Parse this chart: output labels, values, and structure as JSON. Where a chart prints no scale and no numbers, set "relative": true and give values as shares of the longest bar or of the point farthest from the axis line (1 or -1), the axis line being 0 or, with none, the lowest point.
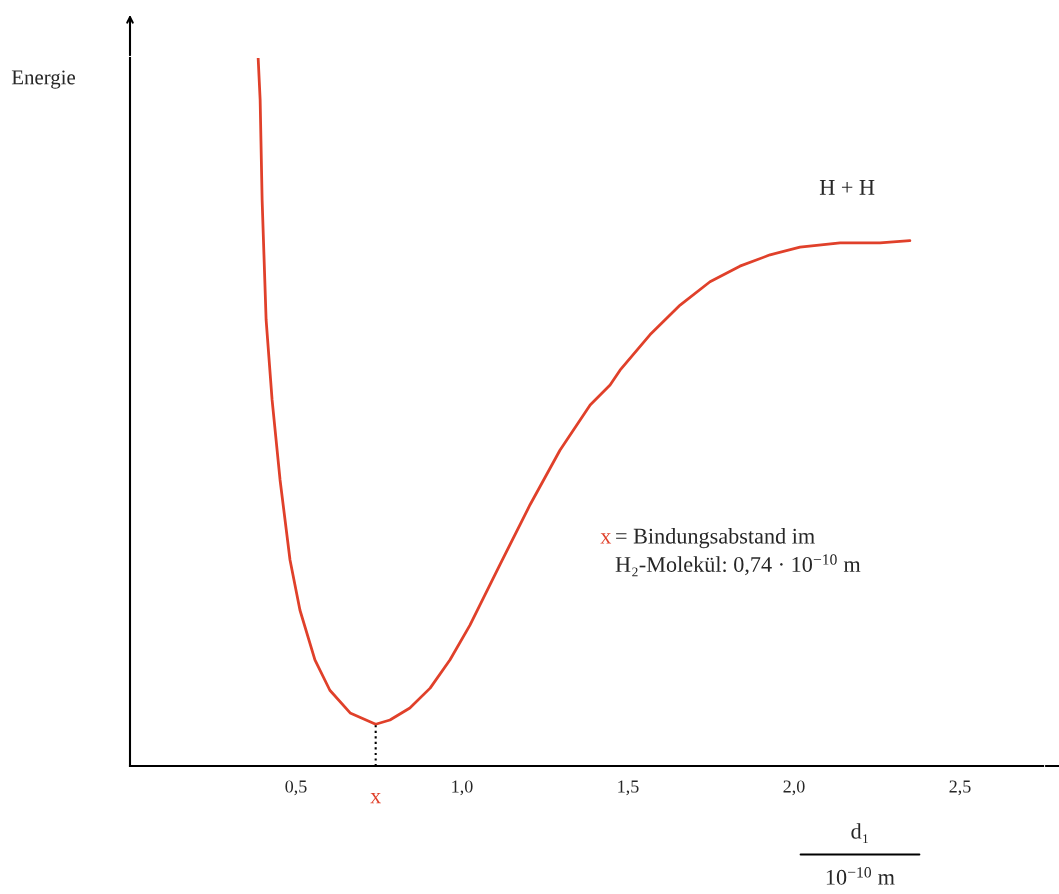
{
  "chart_data": {
    "type": "line",
    "relative": true,
    "ylabel": "Energie",
    "xlabel": "d₁\n10$^{−10}$ m",
    "x": [
      0.386,
      0.392,
      0.398,
      0.41,
      0.428,
      0.452,
      0.482,
      0.512,
      0.557,
      0.602,
      0.663,
      0.74,
      0.783,
      0.843,
      0.904,
      0.964,
      1.024,
      1.114,
      1.205,
      1.295,
      1.386,
      1.446,
      1.476,
      1.566,
      1.657,
      1.747,
      1.837,
      1.928,
      2.018,
      2.139,
      2.259,
      2.349
    ],
    "series": [
      {
        "color": "#e0402a",
        "values": [
          1.0,
          0.941,
          0.799,
          0.63,
          0.517,
          0.404,
          0.291,
          0.22,
          0.15,
          0.107,
          0.075,
          0.059,
          0.065,
          0.082,
          0.11,
          0.15,
          0.199,
          0.284,
          0.369,
          0.446,
          0.51,
          0.538,
          0.559,
          0.609,
          0.651,
          0.684,
          0.706,
          0.722,
          0.733,
          0.739,
          0.739,
          0.742
        ]
      }
    ],
    "xlim": [
      0,
      2.75
    ],
    "xticks": [
      {
        "value": 0.5,
        "label": "0,5"
      },
      {
        "value": 1.0,
        "label": "1,0"
      },
      {
        "value": 1.5,
        "label": "1,5"
      },
      {
        "value": 2.0,
        "label": "2,0"
      },
      {
        "value": 2.5,
        "label": "2,5"
      }
    ],
    "ref_lines": [
      {
        "axis": "x",
        "value": 0.74,
        "label": "x",
        "color": "#000000",
        "line_style": "dotted"
      }
    ],
    "annotations": [
      {
        "text": "H + H",
        "x": 2.16,
        "y": 0.74
      },
      "= Bindungsabstand im\nH₂-Molekül: 0,74 · 10$^{−10}$ m"
    ],
    "marker": "none",
    "line_style": "solid",
    "grid": false
  }
}
